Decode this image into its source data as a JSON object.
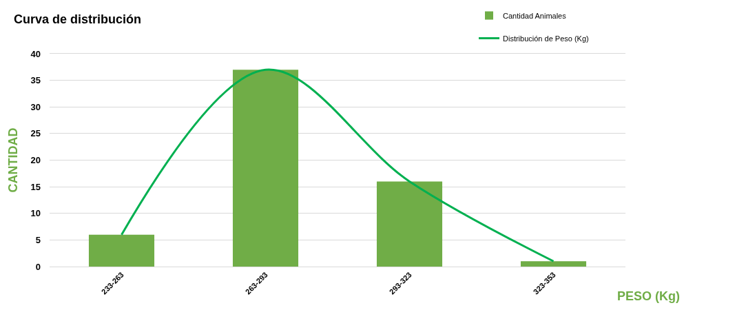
{
  "chart_data": {
    "type": "bar",
    "title": "Curva de distribución",
    "xlabel": "PESO (Kg)",
    "ylabel": "CANTIDAD",
    "categories": [
      "233-263",
      "263-293",
      "293-323",
      "323-353"
    ],
    "series": [
      {
        "name": "Cantidad Animales",
        "color": "#70ad47",
        "values": [
          6,
          37,
          16,
          1
        ]
      },
      {
        "name": "Distribución de Peso (Kg)",
        "type": "line",
        "color": "#00b050",
        "values": [
          6,
          37,
          16,
          1
        ]
      }
    ],
    "ylim": [
      0,
      40
    ],
    "yticks": [
      0,
      5,
      10,
      15,
      20,
      25,
      30,
      35,
      40
    ],
    "grid": "y",
    "legend": "top right",
    "marker": "none",
    "line_style": "solid"
  }
}
